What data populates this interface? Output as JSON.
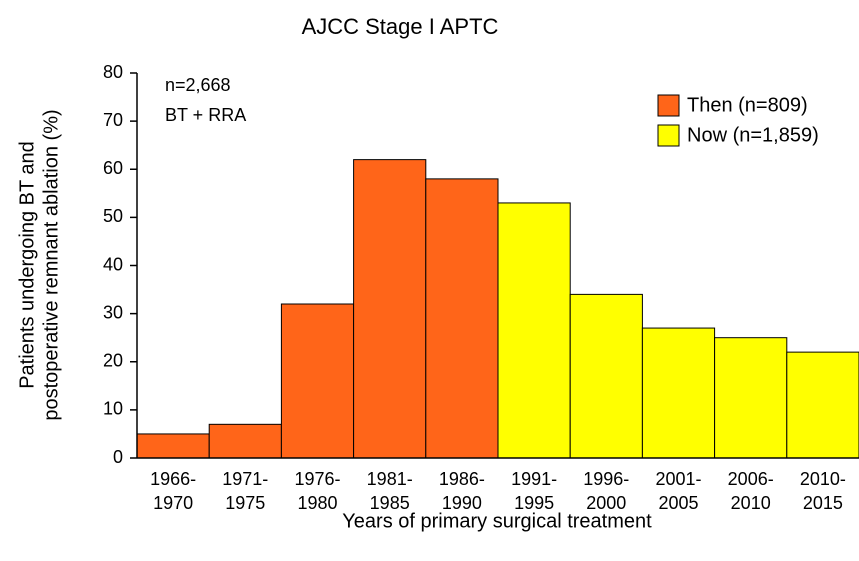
{
  "chart_data": {
    "type": "bar",
    "title": "AJCC Stage I APTC",
    "annotations": [
      "n=2,668",
      "BT + RRA"
    ],
    "y_label": [
      "Patients undergoing BT and",
      "postoperative  remnant ablation (%)"
    ],
    "x_label": "Years of primary surgical treatment",
    "categories": [
      [
        "1966-",
        "1970"
      ],
      [
        "1971-",
        "1975"
      ],
      [
        "1976-",
        "1980"
      ],
      [
        "1981-",
        "1985"
      ],
      [
        "1986-",
        "1990"
      ],
      [
        "1991-",
        "1995"
      ],
      [
        "1996-",
        "2000"
      ],
      [
        "2001-",
        "2005"
      ],
      [
        "2006-",
        "2010"
      ],
      [
        "2010-",
        "2015"
      ]
    ],
    "series": [
      {
        "name": "Then (n=809)",
        "color": "#ff6519",
        "values": [
          5,
          7,
          32,
          62,
          58,
          null,
          null,
          null,
          null,
          null
        ]
      },
      {
        "name": "Now (n=1,859)",
        "color": "#ffff00",
        "values": [
          null,
          null,
          null,
          null,
          null,
          53,
          34,
          27,
          25,
          22
        ]
      }
    ],
    "ylim": [
      0,
      80
    ],
    "yticks": [
      0,
      10,
      20,
      30,
      40,
      50,
      60,
      70,
      80
    ],
    "grid": false,
    "legend": "upper right"
  }
}
